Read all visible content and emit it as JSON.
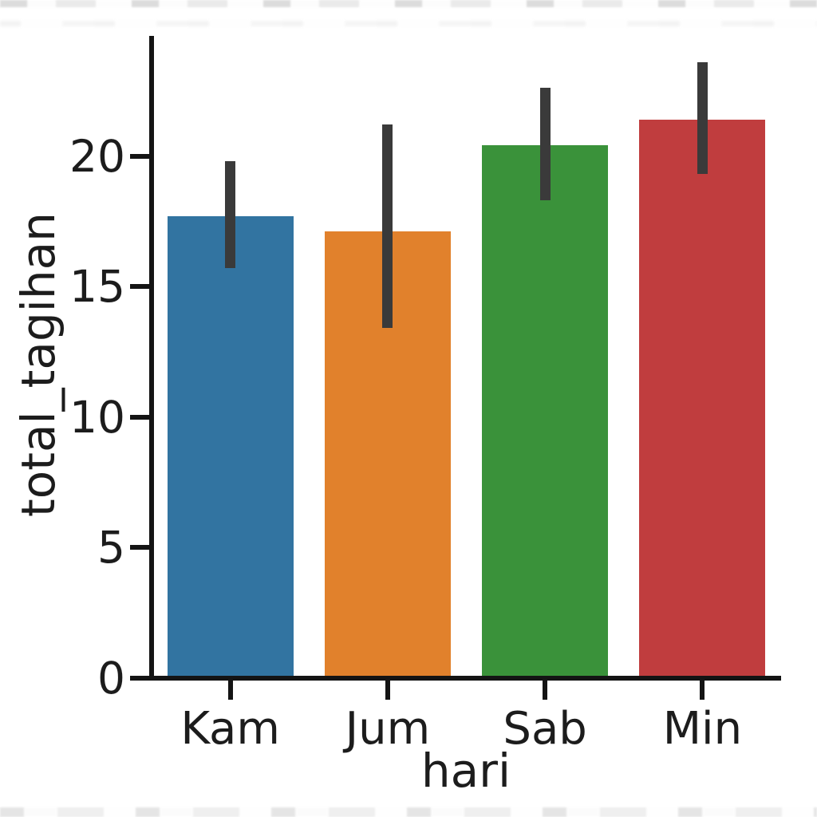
{
  "figure": {
    "background": "#ffffff",
    "axis_color": "#141414",
    "text_color": "#1c1c1c"
  },
  "chart_data": {
    "type": "bar",
    "title": "",
    "xlabel": "hari",
    "ylabel": "total_tagihan",
    "categories": [
      "Kam",
      "Jum",
      "Sab",
      "Min"
    ],
    "values": [
      17.7,
      17.1,
      20.4,
      21.4
    ],
    "error_bars": [
      [
        15.7,
        19.8
      ],
      [
        13.4,
        21.2
      ],
      [
        18.3,
        22.6
      ],
      [
        19.3,
        23.6
      ]
    ],
    "bar_colors": [
      "#3274a1",
      "#e1812c",
      "#3a923a",
      "#c03d3e"
    ],
    "error_bar_color": "#3a3a3a",
    "yticks": [
      0,
      5,
      10,
      15,
      20
    ],
    "ylim": [
      0,
      24.6
    ],
    "grid": false,
    "legend": null
  }
}
